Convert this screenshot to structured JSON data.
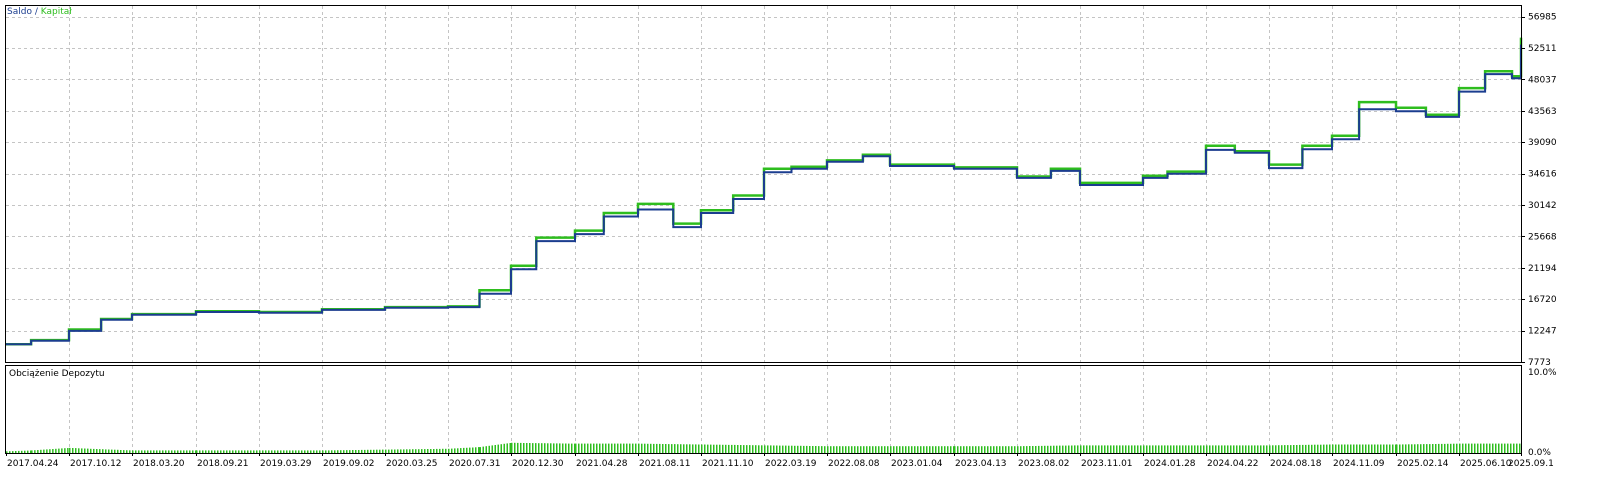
{
  "legend": {
    "saldo": "Saldo",
    "separator": " / ",
    "kapital": "Kapitał"
  },
  "colors": {
    "saldo": "#1b3d8f",
    "kapital": "#2ebd1e",
    "grid": "#c4c4c4",
    "frame": "#000000"
  },
  "chart_data": [
    {
      "type": "line",
      "title": "",
      "x_type": "date",
      "ylim": [
        7773,
        58500
      ],
      "y_tick_labels": [
        "56985",
        "52511",
        "48037",
        "43563",
        "39090",
        "34616",
        "30142",
        "25668",
        "21194",
        "16720",
        "12247",
        "7773"
      ],
      "x_tick_labels": [
        "2017.04.24",
        "2017.10.12",
        "2018.03.20",
        "2018.09.21",
        "2019.03.29",
        "2019.09.02",
        "2020.03.25",
        "2020.07.31",
        "2020.12.30",
        "2021.04.28",
        "2021.08.11",
        "2021.11.10",
        "2022.03.19",
        "2022.08.08",
        "2023.01.04",
        "2023.04.13",
        "2023.08.02",
        "2023.11.01",
        "2024.01.28",
        "2024.04.22",
        "2024.08.18",
        "2024.11.09",
        "2025.02.14",
        "2025.06.10",
        "2025.09.1"
      ],
      "grid": true,
      "legend_position": "top-left",
      "series": [
        {
          "name": "Saldo",
          "x": [
            "2017.04.24",
            "2017.07.01",
            "2017.10.12",
            "2018.01.01",
            "2018.03.20",
            "2018.09.21",
            "2019.03.29",
            "2019.09.02",
            "2020.03.25",
            "2020.07.31",
            "2020.10.15",
            "2020.12.30",
            "2021.02.15",
            "2021.04.28",
            "2021.06.15",
            "2021.08.11",
            "2021.10.01",
            "2021.11.10",
            "2022.01.15",
            "2022.03.19",
            "2022.05.20",
            "2022.08.08",
            "2022.11.01",
            "2023.01.04",
            "2023.04.13",
            "2023.08.02",
            "2023.09.20",
            "2023.11.01",
            "2024.01.28",
            "2024.03.01",
            "2024.04.22",
            "2024.06.15",
            "2024.08.18",
            "2024.10.01",
            "2024.11.09",
            "2024.12.20",
            "2025.02.14",
            "2025.04.10",
            "2025.06.10",
            "2025.07.15",
            "2025.08.20",
            "2025.09.05",
            "2025.09.15"
          ],
          "y": [
            10300,
            10800,
            12200,
            13800,
            14500,
            14900,
            14800,
            15200,
            15500,
            15600,
            17500,
            21000,
            25000,
            26000,
            28500,
            29500,
            27000,
            29000,
            31000,
            34800,
            35300,
            36300,
            37100,
            35700,
            35300,
            34000,
            35000,
            33000,
            34000,
            34600,
            38000,
            37600,
            35400,
            38100,
            39500,
            43800,
            43500,
            42700,
            46300,
            48800,
            48200,
            53000,
            51800
          ]
        },
        {
          "name": "Kapitał",
          "x": [
            "2017.04.24",
            "2017.07.01",
            "2017.10.12",
            "2018.01.01",
            "2018.03.20",
            "2018.09.21",
            "2019.03.29",
            "2019.09.02",
            "2020.03.25",
            "2020.07.31",
            "2020.10.15",
            "2020.12.30",
            "2021.02.15",
            "2021.04.28",
            "2021.06.15",
            "2021.08.11",
            "2021.10.01",
            "2021.11.10",
            "2022.01.15",
            "2022.03.19",
            "2022.05.20",
            "2022.08.08",
            "2022.11.01",
            "2023.01.04",
            "2023.04.13",
            "2023.08.02",
            "2023.09.20",
            "2023.11.01",
            "2024.01.28",
            "2024.03.01",
            "2024.04.22",
            "2024.06.15",
            "2024.08.18",
            "2024.10.01",
            "2024.11.09",
            "2024.12.20",
            "2025.02.14",
            "2025.04.10",
            "2025.06.10",
            "2025.07.15",
            "2025.08.20",
            "2025.09.05",
            "2025.09.15"
          ],
          "y": [
            10300,
            10900,
            12400,
            13900,
            14600,
            15000,
            14900,
            15300,
            15600,
            15700,
            18000,
            21500,
            25500,
            26500,
            29000,
            30300,
            27500,
            29400,
            31500,
            35300,
            35600,
            36500,
            37300,
            35900,
            35500,
            34200,
            35300,
            33300,
            34300,
            34900,
            38600,
            37800,
            35900,
            38600,
            40000,
            44800,
            44000,
            43000,
            46800,
            49200,
            48500,
            54000,
            52000
          ]
        }
      ]
    },
    {
      "type": "bar",
      "title": "Obciążenie Depozytu",
      "ylim": [
        0,
        10
      ],
      "y_tick_labels": [
        "10.0%",
        "0.0%"
      ],
      "series": [
        {
          "x": [
            "2017.04.24",
            "2017.07.01",
            "2017.10.12",
            "2018.03.20",
            "2018.09.21",
            "2019.03.29",
            "2019.09.02",
            "2020.03.25",
            "2020.07.31",
            "2020.10.15",
            "2020.12.30",
            "2021.04.28",
            "2021.08.11",
            "2021.11.10",
            "2022.03.19",
            "2022.08.08",
            "2023.01.04",
            "2023.04.13",
            "2023.08.02",
            "2023.11.01",
            "2024.01.28",
            "2024.04.22",
            "2024.08.18",
            "2024.11.09",
            "2025.02.14",
            "2025.06.10",
            "2025.09.15"
          ],
          "values": [
            0.2,
            0.3,
            0.6,
            0.3,
            0.3,
            0.3,
            0.3,
            0.4,
            0.5,
            0.7,
            1.2,
            1.1,
            1.1,
            1.0,
            0.9,
            0.8,
            0.8,
            0.8,
            0.8,
            0.9,
            0.9,
            0.9,
            0.9,
            1.0,
            1.0,
            1.1,
            1.1
          ]
        }
      ]
    }
  ]
}
